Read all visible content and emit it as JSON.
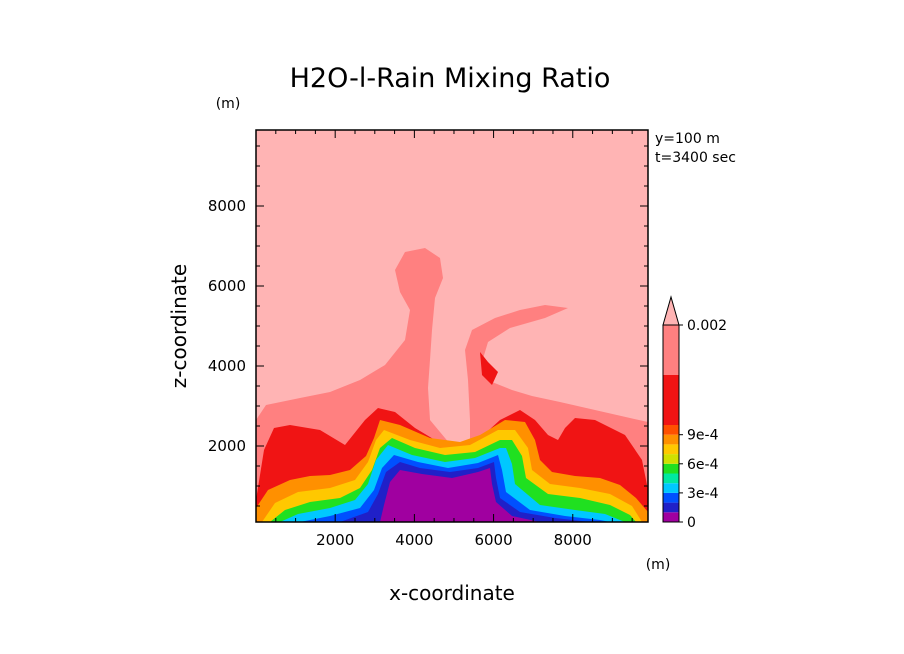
{
  "chart_data": {
    "type": "heatmap",
    "title": "H2O-l-Rain Mixing Ratio",
    "xlabel": "x-coordinate",
    "ylabel": "z-coordinate",
    "x_unit": "(m)",
    "z_unit": "(m)",
    "annotations": [
      "y=100 m",
      "t=3400 sec"
    ],
    "xlim": [
      0,
      9900
    ],
    "ylim": [
      100,
      9900
    ],
    "x_ticks": [
      2000,
      4000,
      6000,
      8000
    ],
    "x_tick_labels": [
      "2000",
      "4000",
      "6000",
      "8000"
    ],
    "y_ticks": [
      2000,
      4000,
      6000,
      8000
    ],
    "y_tick_labels": [
      "2000",
      "4000",
      "6000",
      "8000"
    ],
    "grid": false,
    "legend_placement": "right",
    "colorbar": {
      "levels": [
        0,
        0.0001,
        0.0002,
        0.0003,
        0.0004,
        0.0005,
        0.0006,
        0.0007,
        0.0008,
        0.0009,
        0.001,
        0.0015,
        0.002
      ],
      "tick_values": [
        0,
        0.0003,
        0.0006,
        0.0009,
        0.002
      ],
      "tick_labels": [
        "0",
        "3e-4",
        "6e-4",
        "9e-4",
        "0.002"
      ],
      "colors": [
        "#a000a0",
        "#2020c8",
        "#0050ff",
        "#00c8ff",
        "#00e8a0",
        "#20e020",
        "#d0e000",
        "#ffc800",
        "#ff9000",
        "#ff5000",
        "#f01414",
        "#ff8080",
        "#ffb4b4"
      ],
      "extend": "max"
    },
    "regions": [
      {
        "name": "background",
        "color": "#ffb4b4",
        "value_range": ">0.002"
      },
      {
        "name": "rain-shaft-envelope",
        "color": "#ff8080",
        "value_range": "0.0015-0.002"
      },
      {
        "name": "rain-core-band",
        "color": "#f01414",
        "value_range": "0.001-0.0015"
      },
      {
        "name": "gradient-band",
        "color": "#ffc800",
        "value_range": "0.0001-0.001"
      },
      {
        "name": "dry-core",
        "color": "#a000a0",
        "value_range": "0-0.0001"
      }
    ]
  }
}
